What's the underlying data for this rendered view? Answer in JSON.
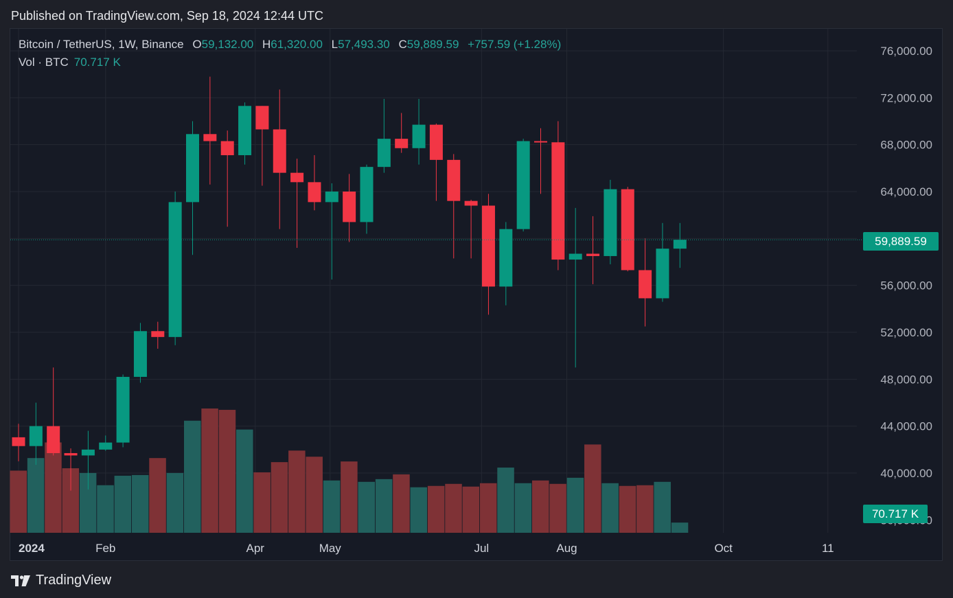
{
  "header": {
    "published": "Published on TradingView.com, Sep 18, 2024 12:44 UTC"
  },
  "legend": {
    "symbol": "Bitcoin / TetherUS, 1W, Binance",
    "o_label": "O",
    "o_value": "59,132.00",
    "h_label": "H",
    "h_value": "61,320.00",
    "l_label": "L",
    "l_value": "57,493.30",
    "c_label": "C",
    "c_value": "59,889.59",
    "change": "+757.59 (+1.28%)",
    "vol_label": "Vol · BTC",
    "vol_value": "70.717 K"
  },
  "tags": {
    "last_price": "59,889.59",
    "last_volume": "70.717 K"
  },
  "brand": {
    "name": "TradingView"
  },
  "colors": {
    "up": "#089981",
    "down": "#f23645",
    "up_volume": "#22615e",
    "down_volume": "#7f3236",
    "background": "#161a25",
    "grid": "#242833"
  },
  "chart_data": {
    "type": "candlestick",
    "title": "Bitcoin / TetherUS, 1W, Binance",
    "y_axis": {
      "ticks": [
        76000,
        72000,
        68000,
        64000,
        60000,
        56000,
        52000,
        48000,
        44000,
        40000
      ],
      "tick_labels": [
        "76,000.00",
        "72,000.00",
        "68,000.00",
        "64,000.00",
        "60,000.00",
        "56,000.00",
        "52,000.00",
        "48,000.00",
        "44,000.00",
        "40,000.00"
      ],
      "ylim": [
        36000,
        78000
      ]
    },
    "x_axis": {
      "labels": [
        {
          "text": "2024",
          "week": 0,
          "bold": true
        },
        {
          "text": "Feb",
          "week": 5
        },
        {
          "text": "Apr",
          "week": 13.6
        },
        {
          "text": "May",
          "week": 17.9
        },
        {
          "text": "Jul",
          "week": 26.6
        },
        {
          "text": "Aug",
          "week": 31.5
        },
        {
          "text": "Oct",
          "week": 40.5
        },
        {
          "text": "11",
          "week": 46.5
        }
      ],
      "total_weeks": 48
    },
    "last_price": 59889.59,
    "candles": [
      {
        "o": 43050,
        "h": 44200,
        "l": 41000,
        "c": 42300,
        "v": 9150
      },
      {
        "o": 42300,
        "h": 46000,
        "l": 40700,
        "c": 44000,
        "v": 11000
      },
      {
        "o": 44000,
        "h": 49000,
        "l": 41500,
        "c": 41700,
        "v": 13300
      },
      {
        "o": 41700,
        "h": 42100,
        "l": 38500,
        "c": 41500,
        "v": 9500
      },
      {
        "o": 41500,
        "h": 43600,
        "l": 38600,
        "c": 42000,
        "v": 8800
      },
      {
        "o": 42000,
        "h": 43200,
        "l": 41900,
        "c": 42600,
        "v": 7000
      },
      {
        "o": 42600,
        "h": 48400,
        "l": 42200,
        "c": 48200,
        "v": 8400
      },
      {
        "o": 48200,
        "h": 52800,
        "l": 47700,
        "c": 52100,
        "v": 8500
      },
      {
        "o": 52100,
        "h": 52900,
        "l": 50600,
        "c": 51600,
        "v": 11000
      },
      {
        "o": 51600,
        "h": 64000,
        "l": 50900,
        "c": 63100,
        "v": 8800
      },
      {
        "o": 63100,
        "h": 70000,
        "l": 58600,
        "c": 68900,
        "v": 16500
      },
      {
        "o": 68900,
        "h": 73800,
        "l": 64600,
        "c": 68300,
        "v": 18300
      },
      {
        "o": 68300,
        "h": 69200,
        "l": 61000,
        "c": 67100,
        "v": 18100
      },
      {
        "o": 67100,
        "h": 71600,
        "l": 66300,
        "c": 71300,
        "v": 15200
      },
      {
        "o": 71300,
        "h": 71200,
        "l": 64500,
        "c": 69300,
        "v": 8900
      },
      {
        "o": 69300,
        "h": 72700,
        "l": 60800,
        "c": 65600,
        "v": 10400
      },
      {
        "o": 65600,
        "h": 66800,
        "l": 59200,
        "c": 64800,
        "v": 12100
      },
      {
        "o": 64800,
        "h": 67100,
        "l": 62400,
        "c": 63100,
        "v": 11200
      },
      {
        "o": 63100,
        "h": 64700,
        "l": 56500,
        "c": 64000,
        "v": 7700
      },
      {
        "o": 64000,
        "h": 65500,
        "l": 59700,
        "c": 61400,
        "v": 10500
      },
      {
        "o": 61400,
        "h": 66300,
        "l": 60400,
        "c": 66100,
        "v": 7500
      },
      {
        "o": 66100,
        "h": 71900,
        "l": 65600,
        "c": 68500,
        "v": 7900
      },
      {
        "o": 68500,
        "h": 70700,
        "l": 67300,
        "c": 67700,
        "v": 8600
      },
      {
        "o": 67700,
        "h": 71900,
        "l": 66300,
        "c": 69700,
        "v": 6700
      },
      {
        "o": 69700,
        "h": 69800,
        "l": 63200,
        "c": 66700,
        "v": 6900
      },
      {
        "o": 66700,
        "h": 67200,
        "l": 58300,
        "c": 63200,
        "v": 7200
      },
      {
        "o": 63200,
        "h": 63300,
        "l": 58300,
        "c": 62800,
        "v": 6800
      },
      {
        "o": 62800,
        "h": 63800,
        "l": 53500,
        "c": 55900,
        "v": 7300
      },
      {
        "o": 55900,
        "h": 61400,
        "l": 54300,
        "c": 60800,
        "v": 9600
      },
      {
        "o": 60800,
        "h": 68500,
        "l": 60600,
        "c": 68300,
        "v": 7300
      },
      {
        "o": 68300,
        "h": 69400,
        "l": 63800,
        "c": 68200,
        "v": 7700
      },
      {
        "o": 68200,
        "h": 70000,
        "l": 57300,
        "c": 58200,
        "v": 7200
      },
      {
        "o": 58200,
        "h": 62600,
        "l": 49000,
        "c": 58700,
        "v": 8100
      },
      {
        "o": 58700,
        "h": 61900,
        "l": 56100,
        "c": 58500,
        "v": 13000
      },
      {
        "o": 58500,
        "h": 65000,
        "l": 57800,
        "c": 64200,
        "v": 7300
      },
      {
        "o": 64200,
        "h": 64400,
        "l": 57200,
        "c": 57300,
        "v": 6900
      },
      {
        "o": 57300,
        "h": 60000,
        "l": 52500,
        "c": 54900,
        "v": 7000
      },
      {
        "o": 54900,
        "h": 60600,
        "l": 54600,
        "c": 59132,
        "h2": 61320,
        "v": 7500
      },
      {
        "o": 59132,
        "h": 61320,
        "l": 57493,
        "c": 59890,
        "v": 70717
      }
    ],
    "volume_scale": {
      "max": 18600
    }
  }
}
